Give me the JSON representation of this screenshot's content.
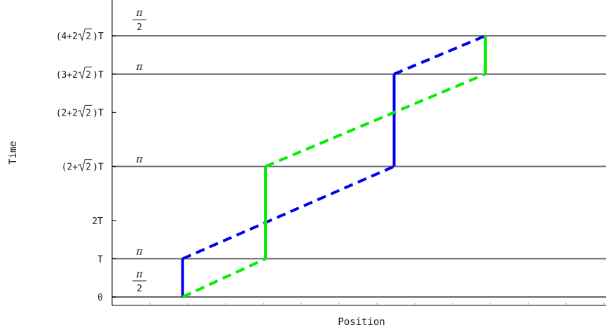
{
  "chart_data": {
    "type": "diagram",
    "xlabel": "Position",
    "ylabel": "Time",
    "y_ticks": [
      {
        "id": "t0",
        "time": 0,
        "label": "0"
      },
      {
        "id": "t1",
        "time": 1,
        "label": "T"
      },
      {
        "id": "t2",
        "time": 2,
        "label": "2T"
      },
      {
        "id": "t3",
        "time": 3.4142,
        "label_pre": "(2+",
        "label_rad": "2",
        "label_post": ")T"
      },
      {
        "id": "t4",
        "time": 4.8284,
        "label_pre": "(2+2",
        "label_rad": "2",
        "label_post": ")T"
      },
      {
        "id": "t5",
        "time": 5.8284,
        "label_pre": "(3+2",
        "label_rad": "2",
        "label_post": ")T"
      },
      {
        "id": "t6",
        "time": 6.8284,
        "label_pre": "(4+2",
        "label_rad": "2",
        "label_post": ")T"
      }
    ],
    "pulses": [
      {
        "id": "p0",
        "time": 0,
        "numerator": "π",
        "denominator": "2"
      },
      {
        "id": "p1",
        "time": 1,
        "label": "π"
      },
      {
        "id": "p3",
        "time": 3.4142,
        "label": "π"
      },
      {
        "id": "p5",
        "time": 5.8284,
        "label": "π"
      },
      {
        "id": "p6",
        "time": 6.8284,
        "numerator": "π",
        "denominator": "2"
      }
    ],
    "ylim": [
      -0.2,
      7.6
    ],
    "xlim": [
      0,
      1
    ],
    "series": [
      {
        "color": "#0000ee",
        "segments": [
          {
            "x": [
              0.17,
              0.17
            ],
            "t": [
              0,
              1
            ],
            "style": "solid"
          },
          {
            "x": [
              0.17,
              0.68
            ],
            "t": [
              1,
              3.4142
            ],
            "style": "dashed"
          },
          {
            "x": [
              0.68,
              0.68
            ],
            "t": [
              3.4142,
              5.8284
            ],
            "style": "solid"
          },
          {
            "x": [
              0.68,
              0.9
            ],
            "t": [
              5.8284,
              6.8284
            ],
            "style": "dashed"
          }
        ]
      },
      {
        "color": "#00ee00",
        "segments": [
          {
            "x": [
              0.17,
              0.37
            ],
            "t": [
              0,
              1
            ],
            "style": "dashed"
          },
          {
            "x": [
              0.37,
              0.37
            ],
            "t": [
              1,
              3.4142
            ],
            "style": "solid"
          },
          {
            "x": [
              0.37,
              0.9
            ],
            "t": [
              3.4142,
              5.8284
            ],
            "style": "dashed"
          },
          {
            "x": [
              0.9,
              0.9
            ],
            "t": [
              5.8284,
              6.8284
            ],
            "style": "solid"
          }
        ]
      }
    ],
    "colors": {
      "pulse_line": "#666666",
      "axis": "#000000"
    }
  }
}
